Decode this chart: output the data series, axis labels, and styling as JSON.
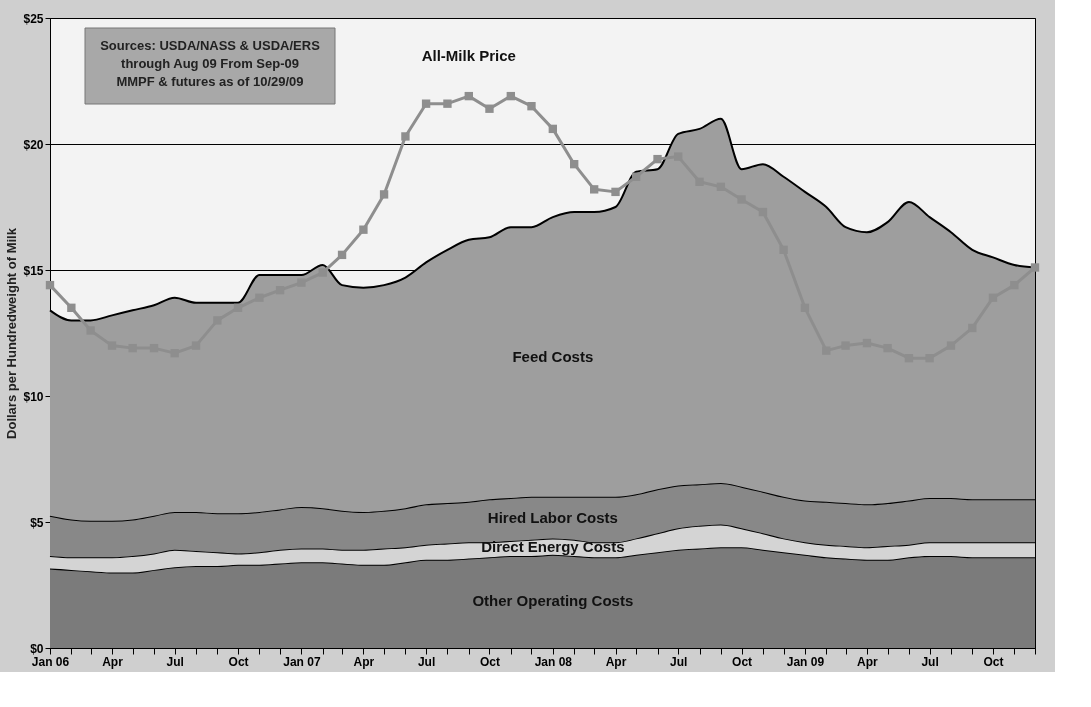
{
  "chart_data": {
    "type": "area",
    "stacked": true,
    "x": [
      "2006-01",
      "2006-02",
      "2006-03",
      "2006-04",
      "2006-05",
      "2006-06",
      "2006-07",
      "2006-08",
      "2006-09",
      "2006-10",
      "2006-11",
      "2006-12",
      "2007-01",
      "2007-02",
      "2007-03",
      "2007-04",
      "2007-05",
      "2007-06",
      "2007-07",
      "2007-08",
      "2007-09",
      "2007-10",
      "2007-11",
      "2007-12",
      "2008-01",
      "2008-02",
      "2008-03",
      "2008-04",
      "2008-05",
      "2008-06",
      "2008-07",
      "2008-08",
      "2008-09",
      "2008-10",
      "2008-11",
      "2008-12",
      "2009-01",
      "2009-02",
      "2009-03",
      "2009-04",
      "2009-05",
      "2009-06",
      "2009-07",
      "2009-08",
      "2009-09",
      "2009-10",
      "2009-11",
      "2009-12"
    ],
    "series": [
      {
        "name": "Other Operating Costs",
        "color": "#7b7b7b",
        "values": [
          3.15,
          3.1,
          3.05,
          3.0,
          3.0,
          3.1,
          3.2,
          3.25,
          3.25,
          3.3,
          3.3,
          3.35,
          3.4,
          3.4,
          3.35,
          3.3,
          3.3,
          3.4,
          3.5,
          3.5,
          3.55,
          3.6,
          3.65,
          3.65,
          3.7,
          3.65,
          3.6,
          3.6,
          3.7,
          3.8,
          3.9,
          3.95,
          4.0,
          4.0,
          3.9,
          3.8,
          3.7,
          3.6,
          3.55,
          3.5,
          3.5,
          3.6,
          3.65,
          3.65,
          3.6,
          3.6,
          3.6,
          3.6
        ]
      },
      {
        "name": "Direct Energy Costs",
        "color": "#d4d4d4",
        "values": [
          0.5,
          0.5,
          0.55,
          0.6,
          0.65,
          0.65,
          0.7,
          0.6,
          0.55,
          0.45,
          0.5,
          0.55,
          0.55,
          0.55,
          0.55,
          0.6,
          0.65,
          0.6,
          0.6,
          0.65,
          0.65,
          0.6,
          0.6,
          0.65,
          0.65,
          0.65,
          0.6,
          0.6,
          0.65,
          0.75,
          0.85,
          0.9,
          0.9,
          0.75,
          0.65,
          0.55,
          0.5,
          0.5,
          0.5,
          0.5,
          0.55,
          0.5,
          0.55,
          0.55,
          0.6,
          0.6,
          0.6,
          0.6
        ]
      },
      {
        "name": "Hired Labor Costs",
        "color": "#888888",
        "values": [
          1.6,
          1.5,
          1.45,
          1.45,
          1.45,
          1.5,
          1.5,
          1.55,
          1.55,
          1.6,
          1.6,
          1.6,
          1.65,
          1.6,
          1.55,
          1.5,
          1.5,
          1.55,
          1.6,
          1.6,
          1.6,
          1.7,
          1.7,
          1.7,
          1.65,
          1.7,
          1.8,
          1.8,
          1.75,
          1.75,
          1.7,
          1.65,
          1.65,
          1.65,
          1.65,
          1.65,
          1.65,
          1.7,
          1.7,
          1.7,
          1.7,
          1.75,
          1.75,
          1.75,
          1.7,
          1.7,
          1.7,
          1.7
        ]
      },
      {
        "name": "Feed Costs",
        "color": "#9e9e9e",
        "values": [
          8.15,
          7.9,
          7.95,
          8.15,
          8.3,
          8.35,
          8.5,
          8.3,
          8.35,
          8.35,
          9.4,
          9.3,
          9.2,
          9.65,
          8.95,
          8.9,
          8.95,
          9.15,
          9.6,
          10.05,
          10.4,
          10.4,
          10.75,
          10.7,
          11.1,
          11.3,
          11.3,
          11.5,
          12.8,
          12.7,
          13.95,
          14.1,
          14.45,
          12.6,
          13.0,
          12.7,
          12.25,
          11.7,
          10.95,
          10.8,
          11.15,
          11.85,
          11.15,
          10.55,
          9.9,
          9.6,
          9.3,
          9.2
        ]
      },
      {
        "name": "All-Milk Price",
        "type": "line",
        "marker": "square",
        "color": "#8e8e8e",
        "values": [
          14.4,
          13.5,
          12.6,
          12.0,
          11.9,
          11.9,
          11.7,
          12.0,
          13.0,
          13.5,
          13.9,
          14.2,
          14.5,
          14.9,
          15.6,
          16.6,
          18.0,
          20.3,
          21.6,
          21.6,
          21.9,
          21.4,
          21.9,
          21.5,
          20.6,
          19.2,
          18.2,
          18.1,
          18.7,
          19.4,
          19.5,
          18.5,
          18.3,
          17.8,
          17.3,
          15.8,
          13.5,
          11.8,
          12.0,
          12.1,
          11.9,
          11.5,
          11.5,
          12.0,
          12.7,
          13.9,
          14.4,
          15.1
        ]
      }
    ],
    "ylabel": "Dollars per Hundredweight of Milk",
    "ylim": [
      0,
      25
    ],
    "yticks": [
      {
        "value": 0,
        "label": "$0"
      },
      {
        "value": 5,
        "label": "$5"
      },
      {
        "value": 10,
        "label": "$10"
      },
      {
        "value": 15,
        "label": "$15"
      },
      {
        "value": 20,
        "label": "$20"
      },
      {
        "value": 25,
        "label": "$25"
      }
    ],
    "xlim": [
      "2006-01",
      "2009-12"
    ],
    "xticks": [
      {
        "value": "2006-01",
        "label": "Jan 06"
      },
      {
        "value": "2006-02",
        "label": null
      },
      {
        "value": "2006-03",
        "label": null
      },
      {
        "value": "2006-04",
        "label": "Apr"
      },
      {
        "value": "2006-05",
        "label": null
      },
      {
        "value": "2006-06",
        "label": null
      },
      {
        "value": "2006-07",
        "label": "Jul"
      },
      {
        "value": "2006-08",
        "label": null
      },
      {
        "value": "2006-09",
        "label": null
      },
      {
        "value": "2006-10",
        "label": "Oct"
      },
      {
        "value": "2006-11",
        "label": null
      },
      {
        "value": "2006-12",
        "label": null
      },
      {
        "value": "2007-01",
        "label": "Jan 07"
      },
      {
        "value": "2007-02",
        "label": null
      },
      {
        "value": "2007-03",
        "label": null
      },
      {
        "value": "2007-04",
        "label": "Apr"
      },
      {
        "value": "2007-05",
        "label": null
      },
      {
        "value": "2007-06",
        "label": null
      },
      {
        "value": "2007-07",
        "label": "Jul"
      },
      {
        "value": "2007-08",
        "label": null
      },
      {
        "value": "2007-09",
        "label": null
      },
      {
        "value": "2007-10",
        "label": "Oct"
      },
      {
        "value": "2007-11",
        "label": null
      },
      {
        "value": "2007-12",
        "label": null
      },
      {
        "value": "2008-01",
        "label": "Jan 08"
      },
      {
        "value": "2008-02",
        "label": null
      },
      {
        "value": "2008-03",
        "label": null
      },
      {
        "value": "2008-04",
        "label": "Apr"
      },
      {
        "value": "2008-05",
        "label": null
      },
      {
        "value": "2008-06",
        "label": null
      },
      {
        "value": "2008-07",
        "label": "Jul"
      },
      {
        "value": "2008-08",
        "label": null
      },
      {
        "value": "2008-09",
        "label": null
      },
      {
        "value": "2008-10",
        "label": "Oct"
      },
      {
        "value": "2008-11",
        "label": null
      },
      {
        "value": "2008-12",
        "label": null
      },
      {
        "value": "2009-01",
        "label": "Jan 09"
      },
      {
        "value": "2009-02",
        "label": null
      },
      {
        "value": "2009-03",
        "label": null
      },
      {
        "value": "2009-04",
        "label": "Apr"
      },
      {
        "value": "2009-05",
        "label": null
      },
      {
        "value": "2009-06",
        "label": null
      },
      {
        "value": "2009-07",
        "label": "Jul"
      },
      {
        "value": "2009-08",
        "label": null
      },
      {
        "value": "2009-09",
        "label": null
      },
      {
        "value": "2009-10",
        "label": "Oct"
      },
      {
        "value": "2009-11",
        "label": null
      },
      {
        "value": "2009-12",
        "label": null
      }
    ],
    "grid": "y",
    "annotations": [
      "Sources: USDA/NASS & USDA/ERS through Aug 09 From Sep-09 MMPF & futures as of 10/29/09"
    ]
  }
}
